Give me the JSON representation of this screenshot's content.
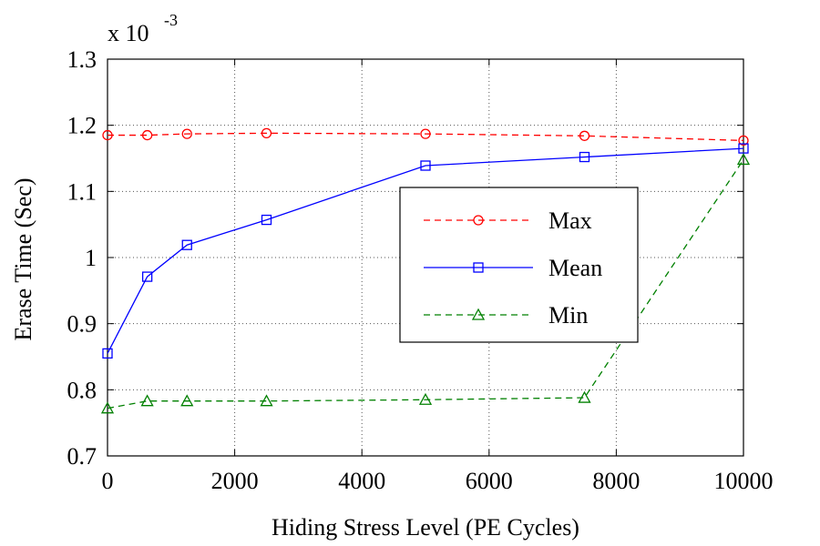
{
  "chart_data": {
    "type": "line",
    "xlabel": "Hiding Stress Level (PE Cycles)",
    "ylabel": "Erase Time (Sec)",
    "y_multiplier": {
      "base": "x 10",
      "exponent": "-3"
    },
    "xlim": [
      0,
      10000
    ],
    "ylim": [
      0.7,
      1.3
    ],
    "xticks": [
      0,
      2000,
      4000,
      6000,
      8000,
      10000
    ],
    "yticks": [
      0.7,
      0.8,
      0.9,
      1,
      1.1,
      1.2,
      1.3
    ],
    "xtick_labels": [
      "0",
      "2000",
      "4000",
      "6000",
      "8000",
      "10000"
    ],
    "ytick_labels": [
      "0.7",
      "0.8",
      "0.9",
      "1",
      "1.1",
      "1.2",
      "1.3"
    ],
    "grid": true,
    "legend_position": "center-right",
    "x": [
      0,
      625,
      1250,
      2500,
      5000,
      7500,
      10000
    ],
    "series": [
      {
        "name": "Max",
        "color": "#ff0000",
        "dash": "dashed",
        "marker": "circle",
        "values": [
          1.185,
          1.185,
          1.187,
          1.188,
          1.187,
          1.184,
          1.177
        ]
      },
      {
        "name": "Mean",
        "color": "#0000ff",
        "dash": "solid",
        "marker": "square",
        "values": [
          0.855,
          0.971,
          1.019,
          1.057,
          1.139,
          1.152,
          1.165
        ]
      },
      {
        "name": "Min",
        "color": "#008000",
        "dash": "dashed",
        "marker": "triangle",
        "values": [
          0.772,
          0.783,
          0.783,
          0.783,
          0.785,
          0.788,
          1.148
        ]
      }
    ]
  }
}
